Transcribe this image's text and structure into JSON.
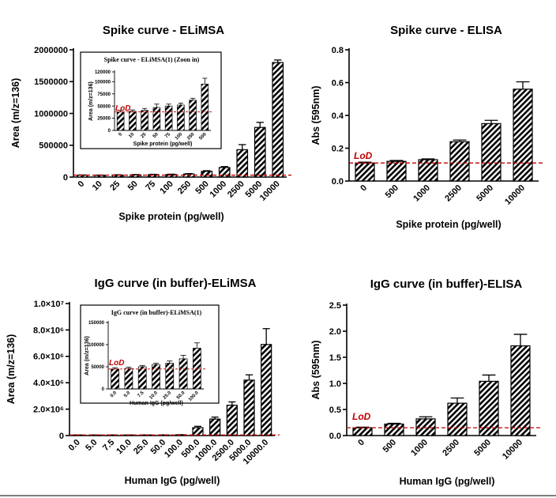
{
  "colors": {
    "bar_fill": "hatched-black",
    "lod_line": "#c00000",
    "lod_text": "#c00000",
    "axis": "#000000"
  },
  "lod_label": "LoD",
  "chart_data": [
    {
      "id": "spike-elimsa",
      "type": "bar",
      "title": "Spike curve - ELiMSA",
      "xlabel": "Spike protein (pg/well)",
      "ylabel": "Area (m/z=136)",
      "categories": [
        "0",
        "10",
        "25",
        "50",
        "75",
        "100",
        "250",
        "500",
        "1000",
        "2500",
        "5000",
        "10000"
      ],
      "values": [
        30000,
        28000,
        32000,
        35000,
        38000,
        40000,
        48000,
        90000,
        150000,
        430000,
        780000,
        1800000
      ],
      "errors": [
        3000,
        3000,
        4000,
        5000,
        5000,
        5000,
        6000,
        10000,
        15000,
        80000,
        80000,
        40000
      ],
      "ylim": [
        0,
        2000000
      ],
      "yticks": [
        0,
        500000,
        1000000,
        1500000,
        2000000
      ],
      "ytick_labels": [
        "0",
        "500000",
        "1000000",
        "1500000",
        "2000000"
      ],
      "lod": 30000
    },
    {
      "id": "spike-elimsa-inset",
      "type": "bar",
      "title": "Spike curve - ELiMSA(1) (Zoon in)",
      "xlabel": "Spike protein (pg/well)",
      "ylabel": "Area (m/z=136)",
      "categories": [
        "0",
        "10",
        "25",
        "50",
        "75",
        "100",
        "250",
        "500"
      ],
      "values": [
        38000,
        39000,
        41000,
        47000,
        50000,
        52000,
        62000,
        95000
      ],
      "errors": [
        3000,
        3000,
        4000,
        7000,
        4000,
        4000,
        4000,
        12000
      ],
      "ylim": [
        0,
        120000
      ],
      "yticks": [
        0,
        25000,
        50000,
        75000,
        100000,
        120000
      ],
      "ytick_labels": [
        "0",
        "25000",
        "50000",
        "75000",
        "100000",
        "120000"
      ],
      "lod": 38000
    },
    {
      "id": "spike-elisa",
      "type": "bar",
      "title": "Spike curve - ELISA",
      "xlabel": "Spike protein (pg/well)",
      "ylabel": "Abs (595nm)",
      "categories": [
        "0",
        "500",
        "1000",
        "2500",
        "5000",
        "10000"
      ],
      "values": [
        0.11,
        0.12,
        0.13,
        0.24,
        0.35,
        0.56
      ],
      "errors": [
        0.005,
        0.005,
        0.005,
        0.01,
        0.02,
        0.045
      ],
      "ylim": [
        0,
        0.8
      ],
      "yticks": [
        0,
        0.2,
        0.4,
        0.6,
        0.8
      ],
      "ytick_labels": [
        "0.0",
        "0.2",
        "0.4",
        "0.6",
        "0.8"
      ],
      "lod": 0.11
    },
    {
      "id": "igg-elimsa",
      "type": "bar",
      "title": "IgG curve (in buffer)-ELiMSA",
      "xlabel": "Human IgG (pg/well)",
      "ylabel": "Area (m/z=136)",
      "categories": [
        "0.0",
        "5.0",
        "7.5",
        "10.0",
        "25.0",
        "50.0",
        "100.0",
        "500.0",
        "1000.0",
        "2500.0",
        "5000.0",
        "10000.0"
      ],
      "values": [
        40000,
        40000,
        40000,
        42000,
        45000,
        48000,
        60000,
        600000,
        1250000,
        2300000,
        4200000,
        6900000
      ],
      "errors": [
        3000,
        3000,
        3000,
        3000,
        4000,
        4000,
        5000,
        100000,
        150000,
        250000,
        400000,
        1200000
      ],
      "ylim": [
        0,
        10000000
      ],
      "yticks": [
        0,
        2000000,
        4000000,
        6000000,
        8000000,
        10000000
      ],
      "ytick_labels": [
        "0",
        "2.0×10⁶",
        "4.0×10⁶",
        "6.0×10⁶",
        "8.0×10⁶",
        "1.0×10⁷"
      ],
      "lod": 45000
    },
    {
      "id": "igg-elimsa-inset",
      "type": "bar",
      "title": "IgG curve (in buffer)-ELiMSA(1)",
      "xlabel": "Human IgG (pg/well)",
      "ylabel": "Area (m/z=136)",
      "categories": [
        "0.0",
        "5.0",
        "7.5",
        "10.0",
        "25.0",
        "50.0",
        "100.0"
      ],
      "values": [
        45000,
        46000,
        50000,
        55000,
        58000,
        68000,
        92000
      ],
      "errors": [
        3000,
        3000,
        3000,
        3000,
        5000,
        8000,
        12000
      ],
      "ylim": [
        0,
        150000
      ],
      "yticks": [
        0,
        50000,
        100000,
        150000
      ],
      "ytick_labels": [
        "0",
        "50000",
        "100000",
        "150000"
      ],
      "lod": 45000
    },
    {
      "id": "igg-elisa",
      "type": "bar",
      "title": "IgG curve (in buffer)-ELISA",
      "xlabel": "Human IgG (pg/well)",
      "ylabel": "Abs (595nm)",
      "categories": [
        "0",
        "500",
        "1000",
        "2500",
        "5000",
        "10000"
      ],
      "values": [
        0.15,
        0.22,
        0.32,
        0.62,
        1.04,
        1.72
      ],
      "errors": [
        0.01,
        0.015,
        0.04,
        0.1,
        0.12,
        0.22
      ],
      "ylim": [
        0,
        2.5
      ],
      "yticks": [
        0,
        0.5,
        1.0,
        1.5,
        2.0,
        2.5
      ],
      "ytick_labels": [
        "0.0",
        "0.5",
        "1.0",
        "1.5",
        "2.0",
        "2.5"
      ],
      "lod": 0.15
    }
  ]
}
